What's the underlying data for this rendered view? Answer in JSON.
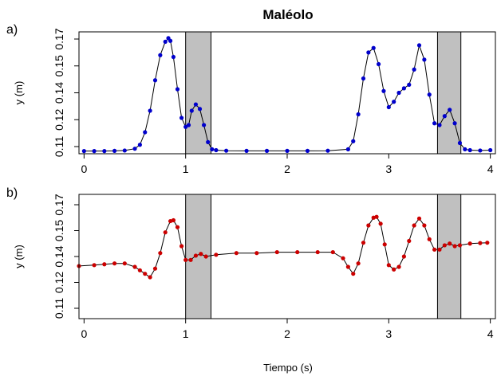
{
  "chart_data": [
    {
      "type": "scatter",
      "panel_label": "a)",
      "title": "Maléolo",
      "xlabel": "",
      "ylabel": "y (m)",
      "xlim": [
        -0.05,
        4.05
      ],
      "ylim": [
        0.106,
        0.174
      ],
      "xticks": [
        0,
        1,
        2,
        3,
        4
      ],
      "xtick_labels": [
        "0",
        "1",
        "2",
        "3",
        "4"
      ],
      "yticks": [
        0.11,
        0.125,
        0.14,
        0.155,
        0.17
      ],
      "ytick_labels": [
        "0.11",
        "0.12",
        "0.14",
        "0.15",
        "0.17"
      ],
      "shaded_regions": [
        [
          1.0,
          1.25
        ],
        [
          3.48,
          3.71
        ]
      ],
      "series_color": "#0000cc",
      "shade_color": "#c0c0c0",
      "series": [
        {
          "x": [
            0.0,
            0.1,
            0.2,
            0.3,
            0.4,
            0.5,
            0.55,
            0.6,
            0.65,
            0.7,
            0.75,
            0.8,
            0.83,
            0.85,
            0.88,
            0.92,
            0.96,
            1.0,
            1.03,
            1.06,
            1.1,
            1.14,
            1.18,
            1.22,
            1.26,
            1.3,
            1.4,
            1.6,
            1.8,
            2.0,
            2.2,
            2.4,
            2.6,
            2.65,
            2.7,
            2.75,
            2.8,
            2.85,
            2.9,
            2.95,
            3.0,
            3.05,
            3.1,
            3.15,
            3.2,
            3.25,
            3.3,
            3.35,
            3.4,
            3.45,
            3.5,
            3.55,
            3.6,
            3.65,
            3.7,
            3.75,
            3.8,
            3.9,
            4.0
          ],
          "y": [
            0.1075,
            0.1075,
            0.1075,
            0.1076,
            0.1078,
            0.1088,
            0.111,
            0.118,
            0.13,
            0.147,
            0.161,
            0.1685,
            0.1705,
            0.169,
            0.16,
            0.142,
            0.126,
            0.121,
            0.122,
            0.13,
            0.1335,
            0.131,
            0.122,
            0.1125,
            0.1085,
            0.108,
            0.1077,
            0.1076,
            0.1076,
            0.1076,
            0.1076,
            0.1077,
            0.1085,
            0.113,
            0.128,
            0.148,
            0.1625,
            0.165,
            0.156,
            0.141,
            0.132,
            0.135,
            0.14,
            0.1425,
            0.1445,
            0.153,
            0.1665,
            0.1585,
            0.139,
            0.123,
            0.122,
            0.127,
            0.1305,
            0.123,
            0.112,
            0.1085,
            0.108,
            0.1078,
            0.108
          ]
        }
      ]
    },
    {
      "type": "scatter",
      "panel_label": "b)",
      "title": "",
      "xlabel": "Tiempo (s)",
      "ylabel": "y (m)",
      "xlim": [
        -0.05,
        4.05
      ],
      "ylim": [
        0.104,
        0.176
      ],
      "xticks": [
        0,
        1,
        2,
        3,
        4
      ],
      "xtick_labels": [
        "0",
        "1",
        "2",
        "3",
        "4"
      ],
      "yticks": [
        0.11,
        0.125,
        0.14,
        0.155,
        0.17
      ],
      "ytick_labels": [
        "0.11",
        "0.12",
        "0.14",
        "0.15",
        "0.17"
      ],
      "shaded_regions": [
        [
          1.0,
          1.25
        ],
        [
          3.48,
          3.71
        ]
      ],
      "series_color": "#cc0000",
      "shade_color": "#c0c0c0",
      "series": [
        {
          "x": [
            -0.05,
            0.1,
            0.2,
            0.3,
            0.4,
            0.5,
            0.55,
            0.6,
            0.65,
            0.7,
            0.75,
            0.8,
            0.85,
            0.88,
            0.92,
            0.96,
            1.0,
            1.05,
            1.1,
            1.15,
            1.2,
            1.3,
            1.5,
            1.7,
            1.9,
            2.1,
            2.3,
            2.45,
            2.55,
            2.6,
            2.65,
            2.7,
            2.75,
            2.8,
            2.85,
            2.88,
            2.92,
            2.96,
            3.0,
            3.05,
            3.1,
            3.15,
            3.2,
            3.25,
            3.3,
            3.35,
            3.4,
            3.45,
            3.5,
            3.55,
            3.6,
            3.65,
            3.7,
            3.8,
            3.9,
            3.97
          ],
          "y": [
            0.1345,
            0.135,
            0.1355,
            0.136,
            0.136,
            0.134,
            0.132,
            0.13,
            0.128,
            0.133,
            0.142,
            0.154,
            0.1605,
            0.161,
            0.157,
            0.146,
            0.138,
            0.138,
            0.1405,
            0.1415,
            0.14,
            0.141,
            0.142,
            0.142,
            0.1425,
            0.1425,
            0.1425,
            0.1425,
            0.139,
            0.134,
            0.13,
            0.136,
            0.148,
            0.158,
            0.1625,
            0.163,
            0.159,
            0.147,
            0.135,
            0.1325,
            0.134,
            0.14,
            0.149,
            0.158,
            0.162,
            0.158,
            0.15,
            0.144,
            0.144,
            0.1465,
            0.1475,
            0.146,
            0.1465,
            0.1475,
            0.1478,
            0.148
          ]
        }
      ]
    }
  ]
}
